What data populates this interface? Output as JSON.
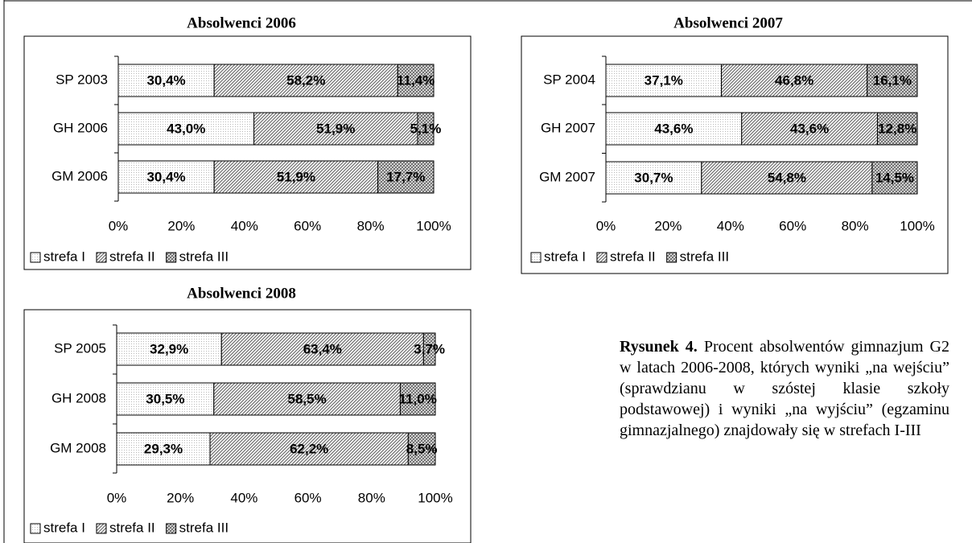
{
  "chart_data": [
    {
      "type": "bar",
      "orientation": "horizontal",
      "stacked": true,
      "title": "Absolwenci 2006",
      "categories": [
        "SP 2003",
        "GH 2006",
        "GM 2006"
      ],
      "series": [
        {
          "name": "strefa I",
          "color": "#b8b8b8",
          "pattern": "dots",
          "values": [
            30.4,
            43.0,
            30.4
          ],
          "value_labels": [
            "30,4%",
            "43,0%",
            "30,4%"
          ]
        },
        {
          "name": "strefa II",
          "color": "#6e6e6e",
          "pattern": "diagonal",
          "values": [
            58.2,
            51.9,
            51.9
          ],
          "value_labels": [
            "58,2%",
            "51,9%",
            "51,9%"
          ]
        },
        {
          "name": "strefa III",
          "color": "#6e6e6e",
          "pattern": "cross",
          "values": [
            11.4,
            5.1,
            17.7
          ],
          "value_labels": [
            "11,4%",
            "5,1%",
            "17,7%"
          ]
        }
      ],
      "xlim": [
        0,
        100
      ],
      "xticks": [
        {
          "value": 0,
          "label": "0%"
        },
        {
          "value": 20,
          "label": "20%"
        },
        {
          "value": 40,
          "label": "40%"
        },
        {
          "value": 60,
          "label": "60%"
        },
        {
          "value": 80,
          "label": "80%"
        },
        {
          "value": 100,
          "label": "100%"
        }
      ],
      "legend": "bottom"
    },
    {
      "type": "bar",
      "orientation": "horizontal",
      "stacked": true,
      "title": "Absolwenci 2007",
      "categories": [
        "SP 2004",
        "GH 2007",
        "GM 2007"
      ],
      "series": [
        {
          "name": "strefa I",
          "color": "#b8b8b8",
          "pattern": "dots",
          "values": [
            37.1,
            43.6,
            30.7
          ],
          "value_labels": [
            "37,1%",
            "43,6%",
            "30,7%"
          ]
        },
        {
          "name": "strefa II",
          "color": "#6e6e6e",
          "pattern": "diagonal",
          "values": [
            46.8,
            43.6,
            54.8
          ],
          "value_labels": [
            "46,8%",
            "43,6%",
            "54,8%"
          ]
        },
        {
          "name": "strefa III",
          "color": "#6e6e6e",
          "pattern": "cross",
          "values": [
            16.1,
            12.8,
            14.5
          ],
          "value_labels": [
            "16,1%",
            "12,8%",
            "14,5%"
          ]
        }
      ],
      "xlim": [
        0,
        100
      ],
      "xticks": [
        {
          "value": 0,
          "label": "0%"
        },
        {
          "value": 20,
          "label": "20%"
        },
        {
          "value": 40,
          "label": "40%"
        },
        {
          "value": 60,
          "label": "60%"
        },
        {
          "value": 80,
          "label": "80%"
        },
        {
          "value": 100,
          "label": "100%"
        }
      ],
      "legend": "bottom"
    },
    {
      "type": "bar",
      "orientation": "horizontal",
      "stacked": true,
      "title": "Absolwenci 2008",
      "categories": [
        "SP 2005",
        "GH 2008",
        "GM 2008"
      ],
      "series": [
        {
          "name": "strefa I",
          "color": "#b8b8b8",
          "pattern": "dots",
          "values": [
            32.9,
            30.5,
            29.3
          ],
          "value_labels": [
            "32,9%",
            "30,5%",
            "29,3%"
          ]
        },
        {
          "name": "strefa II",
          "color": "#6e6e6e",
          "pattern": "diagonal",
          "values": [
            63.4,
            58.5,
            62.2
          ],
          "value_labels": [
            "63,4%",
            "58,5%",
            "62,2%"
          ]
        },
        {
          "name": "strefa III",
          "color": "#6e6e6e",
          "pattern": "cross",
          "values": [
            3.7,
            11.0,
            8.5
          ],
          "value_labels": [
            "3,7%",
            "11,0%",
            "8,5%"
          ]
        }
      ],
      "xlim": [
        0,
        100
      ],
      "xticks": [
        {
          "value": 0,
          "label": "0%"
        },
        {
          "value": 20,
          "label": "20%"
        },
        {
          "value": 40,
          "label": "40%"
        },
        {
          "value": 60,
          "label": "60%"
        },
        {
          "value": 80,
          "label": "80%"
        },
        {
          "value": 100,
          "label": "100%"
        }
      ],
      "legend": "bottom"
    }
  ],
  "caption": {
    "label": "Rysunek 4.",
    "text": "Procent absolwentów gimnazjum G2 w latach 2006-2008, których wyniki „na wejściu” (sprawdzianu w szóstej klasie szkoły podstawowej) i wyniki „na wyjściu” (egzaminu gimnazjalnego) znajdowały się w strefach I-III"
  }
}
